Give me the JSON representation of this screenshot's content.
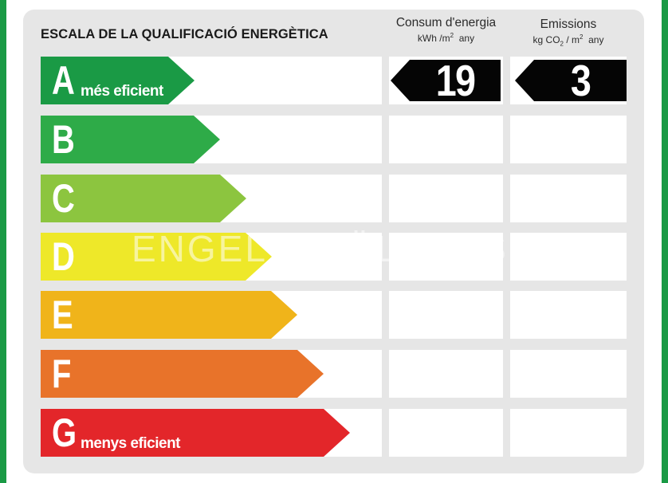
{
  "title": "ESCALA DE LA QUALIFICACIÓ ENERGÈTICA",
  "consumption_header": {
    "label": "Consum d'energia",
    "unit_main": "kWh /m",
    "unit_sup": "2",
    "unit_tail": "any"
  },
  "emissions_header": {
    "label": "Emissions",
    "unit_a": "kg CO",
    "unit_sub": "2",
    "unit_b": " / m",
    "unit_sup": "2",
    "unit_tail": "any"
  },
  "scale": [
    {
      "letter": "A",
      "caption": "més eficient",
      "color": "#1a9a45"
    },
    {
      "letter": "B",
      "caption": "",
      "color": "#2eab48"
    },
    {
      "letter": "C",
      "caption": "",
      "color": "#8cc53f"
    },
    {
      "letter": "D",
      "caption": "",
      "color": "#eee829"
    },
    {
      "letter": "E",
      "caption": "",
      "color": "#f0b41a"
    },
    {
      "letter": "F",
      "caption": "",
      "color": "#e8732a"
    },
    {
      "letter": "G",
      "caption": "menys eficient",
      "color": "#e3262a"
    }
  ],
  "rating": {
    "consumption_value": "19",
    "consumption_class": "A",
    "emissions_value": "3",
    "emissions_class": "A"
  },
  "watermark": "ENGEL & VÖLKERS",
  "colors": {
    "edge": "#1a9a45",
    "card": "#e6e6e6",
    "value_box": "#050505"
  }
}
